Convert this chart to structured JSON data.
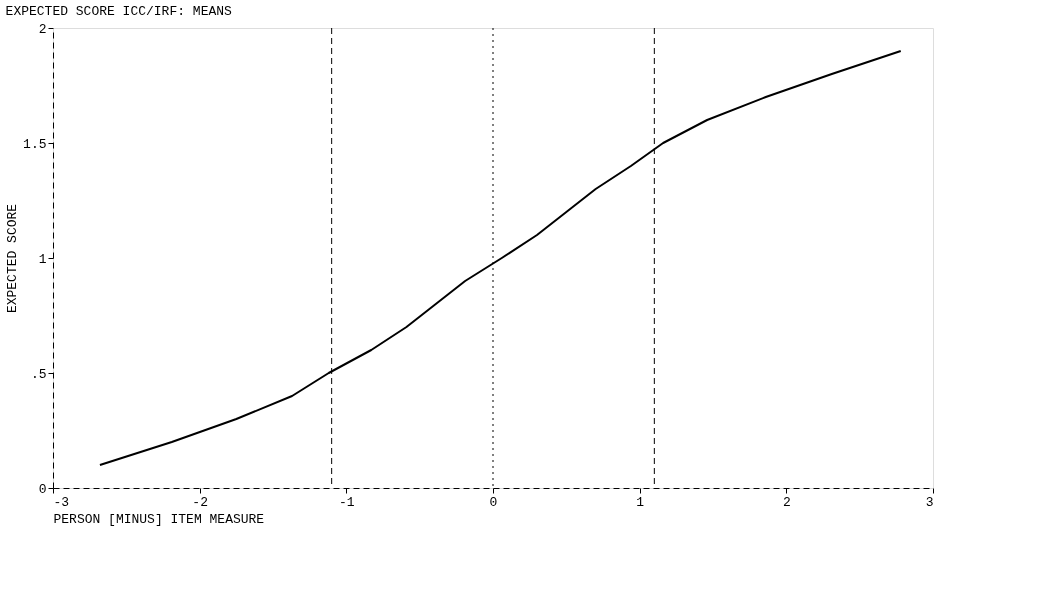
{
  "chart_data": {
    "type": "line",
    "title": "EXPECTED SCORE ICC/IRF: MEANS",
    "xlabel": "PERSON [MINUS] ITEM MEASURE",
    "ylabel": "EXPECTED SCORE",
    "x": [
      -2.68,
      -2.19,
      -1.75,
      -1.37,
      -1.12,
      -0.83,
      -0.59,
      -0.39,
      -0.19,
      0.06,
      0.3,
      0.5,
      0.7,
      0.94,
      1.16,
      1.46,
      1.86,
      2.31,
      2.78
    ],
    "series": [
      {
        "color": "#000000",
        "values": [
          0.1,
          0.2,
          0.3,
          0.4,
          0.5,
          0.6,
          0.7,
          0.8,
          0.9,
          1.0,
          1.1,
          1.2,
          1.3,
          1.4,
          1.5,
          1.6,
          1.7,
          1.8,
          1.9
        ]
      }
    ],
    "xlim": [
      -3,
      3
    ],
    "xticks": [
      -3,
      -2,
      -1,
      0,
      1,
      2,
      3
    ],
    "ylim": [
      0,
      2
    ],
    "yticks": [
      0,
      {
        "value": 0.5,
        "label": ".5"
      },
      1,
      1.5,
      2
    ],
    "ref_lines": [
      {
        "axis": "x",
        "value": -1.1,
        "line_style": "dashed"
      },
      {
        "axis": "x",
        "value": 0,
        "line_style": "dotted"
      },
      {
        "axis": "x",
        "value": 1.1,
        "line_style": "dashed"
      }
    ],
    "grid": false,
    "marker": "none",
    "line_style": "solid"
  }
}
